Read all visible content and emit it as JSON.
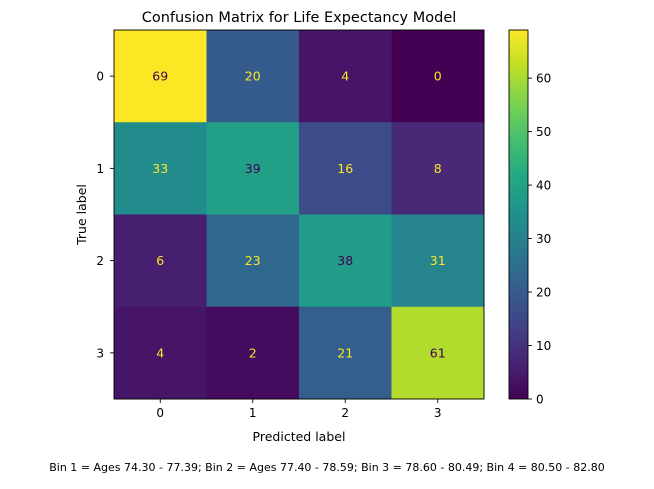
{
  "chart_data": {
    "type": "heatmap",
    "title": "Confusion Matrix for Life Expectancy Model",
    "xlabel": "Predicted label",
    "ylabel": "True label",
    "x_categories": [
      "0",
      "1",
      "2",
      "3"
    ],
    "y_categories": [
      "0",
      "1",
      "2",
      "3"
    ],
    "values": [
      [
        69,
        20,
        4,
        0
      ],
      [
        33,
        39,
        16,
        8
      ],
      [
        6,
        23,
        38,
        31
      ],
      [
        4,
        2,
        21,
        61
      ]
    ],
    "colormap": "viridis",
    "colorbar": {
      "range": [
        0,
        69
      ],
      "ticks": [
        0,
        10,
        20,
        30,
        40,
        50,
        60
      ],
      "tick_labels": [
        "0",
        "10",
        "20",
        "30",
        "40",
        "50",
        "60"
      ]
    },
    "grid": false,
    "annotation_colors": {
      "on_dark": "#fde725",
      "on_light": "#440154"
    }
  },
  "footer": {
    "caption": "Bin 1 = Ages 74.30 - 77.39; Bin 2 = Ages 77.40 - 78.59; Bin 3 = 78.60 - 80.49; Bin 4 = 80.50 - 82.80"
  }
}
